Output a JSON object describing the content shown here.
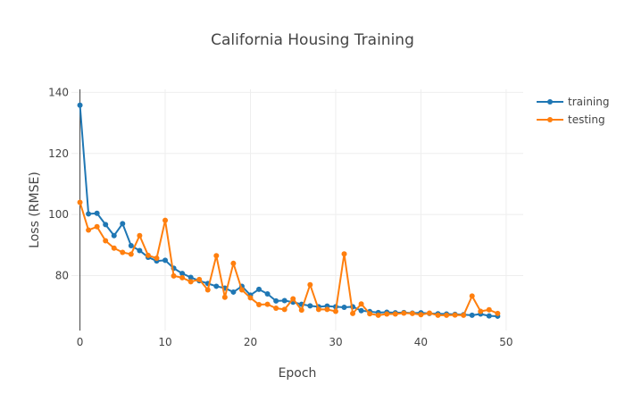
{
  "chart_data": {
    "type": "line",
    "title": "California Housing Training",
    "xlabel": "Epoch",
    "ylabel": "Loss (RMSE)",
    "xlim": [
      -1,
      52
    ],
    "ylim": [
      62,
      141
    ],
    "xticks": [
      0,
      10,
      20,
      30,
      40,
      50
    ],
    "yticks": [
      80,
      100,
      120,
      140
    ],
    "grid": true,
    "legend": "top-right",
    "x": [
      0,
      1,
      2,
      3,
      4,
      5,
      6,
      7,
      8,
      9,
      10,
      11,
      12,
      13,
      14,
      15,
      16,
      17,
      18,
      19,
      20,
      21,
      22,
      23,
      24,
      25,
      26,
      27,
      28,
      29,
      30,
      31,
      32,
      33,
      34,
      35,
      36,
      37,
      38,
      39,
      40,
      41,
      42,
      43,
      44,
      45,
      46,
      47,
      48,
      49
    ],
    "series": [
      {
        "name": "training",
        "color": "#1f77b4",
        "values": [
          135.8,
          100.2,
          100.4,
          96.7,
          93.1,
          97.0,
          89.8,
          88.2,
          86.0,
          84.8,
          85.0,
          82.4,
          80.7,
          79.4,
          78.3,
          77.4,
          76.5,
          75.9,
          74.6,
          76.5,
          73.6,
          75.5,
          74.0,
          71.7,
          71.8,
          71.3,
          70.6,
          70.1,
          69.8,
          70.0,
          69.8,
          69.6,
          69.8,
          68.5,
          68.2,
          67.9,
          68.0,
          67.8,
          67.9,
          67.7,
          67.8,
          67.6,
          67.5,
          67.4,
          67.3,
          67.2,
          67.0,
          67.4,
          66.8,
          66.7
        ]
      },
      {
        "name": "testing",
        "color": "#ff7f0e",
        "values": [
          104.0,
          94.9,
          96.0,
          91.4,
          89.0,
          87.6,
          87.0,
          93.1,
          86.6,
          85.7,
          98.1,
          79.9,
          79.3,
          78.0,
          78.7,
          75.3,
          86.5,
          72.9,
          84.0,
          75.3,
          72.7,
          70.5,
          70.6,
          69.3,
          68.9,
          72.4,
          68.7,
          77.0,
          68.9,
          68.9,
          68.3,
          87.1,
          67.6,
          70.7,
          67.5,
          67.0,
          67.4,
          67.4,
          67.7,
          67.6,
          67.2,
          67.7,
          67.0,
          67.0,
          67.1,
          67.0,
          73.3,
          68.3,
          68.8,
          67.6
        ]
      }
    ]
  }
}
